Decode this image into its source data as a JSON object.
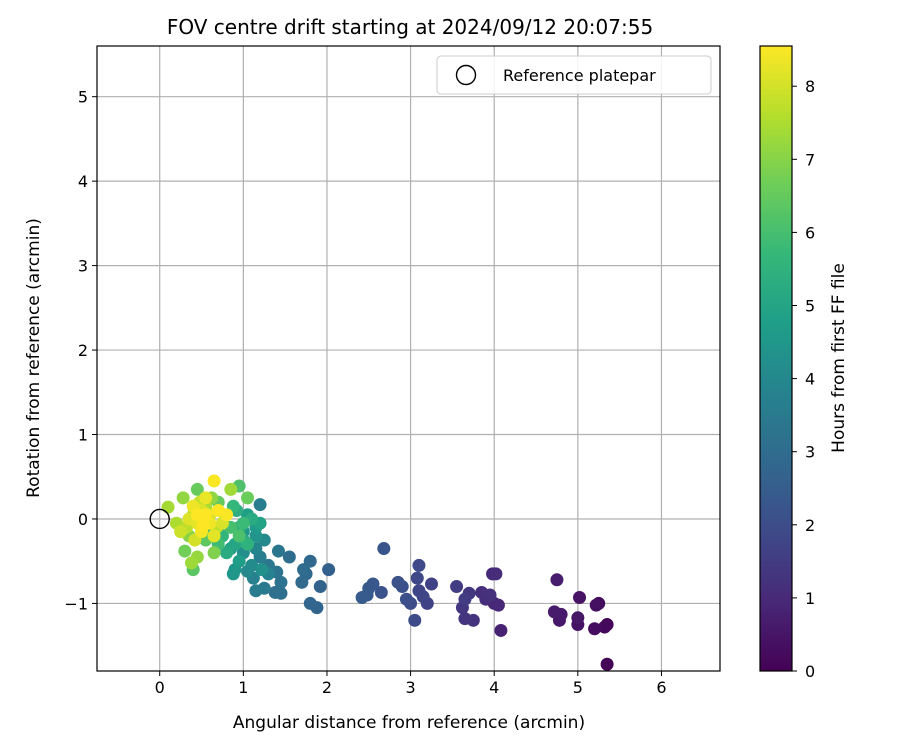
{
  "chart_data": {
    "type": "scatter",
    "title": "FOV centre drift starting at 2024/09/12 20:07:55",
    "xlabel": "Angular distance from reference (arcmin)",
    "ylabel": "Rotation from reference (arcmin)",
    "xlim": [
      -0.75,
      6.7
    ],
    "ylim": [
      -1.8,
      5.6
    ],
    "xticks": [
      0,
      1,
      2,
      3,
      4,
      5,
      6
    ],
    "yticks": [
      -1,
      0,
      1,
      2,
      3,
      4,
      5
    ],
    "xtick_labels": [
      "0",
      "1",
      "2",
      "3",
      "4",
      "5",
      "6"
    ],
    "ytick_labels": [
      "−1",
      "0",
      "1",
      "2",
      "3",
      "4",
      "5"
    ],
    "grid": true,
    "colormap": "viridis",
    "colorbar": {
      "label": "Hours from first FF file",
      "range": [
        0,
        8.55
      ],
      "ticks": [
        0,
        1,
        2,
        3,
        4,
        5,
        6,
        7,
        8
      ],
      "tick_labels": [
        "0",
        "1",
        "2",
        "3",
        "4",
        "5",
        "6",
        "7",
        "8"
      ]
    },
    "legend": {
      "position": "top-right",
      "entries": [
        "Reference platepar"
      ]
    },
    "reference": {
      "x": 0,
      "y": 0,
      "marker": "open-circle"
    },
    "points": [
      {
        "x": 5.35,
        "y": -1.72,
        "t": 0.05
      },
      {
        "x": 5.35,
        "y": -1.25,
        "t": 0.15
      },
      {
        "x": 5.32,
        "y": -1.28,
        "t": 0.2
      },
      {
        "x": 5.25,
        "y": -1.0,
        "t": 0.25
      },
      {
        "x": 5.2,
        "y": -1.3,
        "t": 0.3
      },
      {
        "x": 5.22,
        "y": -1.02,
        "t": 0.35
      },
      {
        "x": 5.0,
        "y": -1.25,
        "t": 0.4
      },
      {
        "x": 5.02,
        "y": -0.93,
        "t": 0.45
      },
      {
        "x": 5.0,
        "y": -1.17,
        "t": 0.5
      },
      {
        "x": 4.78,
        "y": -1.2,
        "t": 0.55
      },
      {
        "x": 4.8,
        "y": -1.13,
        "t": 0.6
      },
      {
        "x": 4.72,
        "y": -1.1,
        "t": 0.65
      },
      {
        "x": 4.75,
        "y": -0.72,
        "t": 0.7
      },
      {
        "x": 4.08,
        "y": -1.32,
        "t": 0.8
      },
      {
        "x": 4.0,
        "y": -1.0,
        "t": 0.9
      },
      {
        "x": 4.05,
        "y": -1.02,
        "t": 0.95
      },
      {
        "x": 3.98,
        "y": -0.65,
        "t": 1.0
      },
      {
        "x": 4.02,
        "y": -0.65,
        "t": 1.05
      },
      {
        "x": 3.9,
        "y": -0.95,
        "t": 1.1
      },
      {
        "x": 3.85,
        "y": -0.87,
        "t": 1.15
      },
      {
        "x": 3.95,
        "y": -0.9,
        "t": 1.2
      },
      {
        "x": 3.75,
        "y": -1.2,
        "t": 1.25
      },
      {
        "x": 3.65,
        "y": -1.18,
        "t": 1.3
      },
      {
        "x": 3.62,
        "y": -1.05,
        "t": 1.35
      },
      {
        "x": 3.7,
        "y": -0.88,
        "t": 1.4
      },
      {
        "x": 3.65,
        "y": -0.95,
        "t": 1.5
      },
      {
        "x": 3.55,
        "y": -0.8,
        "t": 1.55
      },
      {
        "x": 3.25,
        "y": -0.77,
        "t": 1.65
      },
      {
        "x": 3.2,
        "y": -1.0,
        "t": 1.7
      },
      {
        "x": 3.15,
        "y": -0.92,
        "t": 1.75
      },
      {
        "x": 3.1,
        "y": -0.85,
        "t": 1.8
      },
      {
        "x": 3.08,
        "y": -0.7,
        "t": 1.85
      },
      {
        "x": 3.1,
        "y": -0.55,
        "t": 1.9
      },
      {
        "x": 3.05,
        "y": -1.2,
        "t": 1.95
      },
      {
        "x": 3.0,
        "y": -1.0,
        "t": 2.0
      },
      {
        "x": 2.95,
        "y": -0.95,
        "t": 2.05
      },
      {
        "x": 2.9,
        "y": -0.8,
        "t": 2.1
      },
      {
        "x": 2.85,
        "y": -0.75,
        "t": 2.15
      },
      {
        "x": 2.65,
        "y": -0.87,
        "t": 2.2
      },
      {
        "x": 2.68,
        "y": -0.35,
        "t": 2.25
      },
      {
        "x": 2.55,
        "y": -0.77,
        "t": 2.3
      },
      {
        "x": 2.5,
        "y": -0.82,
        "t": 2.35
      },
      {
        "x": 2.48,
        "y": -0.9,
        "t": 2.4
      },
      {
        "x": 2.42,
        "y": -0.93,
        "t": 2.45
      },
      {
        "x": 2.02,
        "y": -0.6,
        "t": 2.6
      },
      {
        "x": 1.92,
        "y": -0.8,
        "t": 2.7
      },
      {
        "x": 1.88,
        "y": -1.05,
        "t": 2.75
      },
      {
        "x": 1.8,
        "y": -1.0,
        "t": 2.8
      },
      {
        "x": 1.8,
        "y": -0.5,
        "t": 2.85
      },
      {
        "x": 1.75,
        "y": -0.65,
        "t": 2.9
      },
      {
        "x": 1.7,
        "y": -0.75,
        "t": 2.95
      },
      {
        "x": 1.72,
        "y": -0.6,
        "t": 3.0
      },
      {
        "x": 1.55,
        "y": -0.45,
        "t": 3.05
      },
      {
        "x": 1.45,
        "y": -0.88,
        "t": 3.1
      },
      {
        "x": 1.38,
        "y": -0.87,
        "t": 3.15
      },
      {
        "x": 1.45,
        "y": -0.75,
        "t": 3.2
      },
      {
        "x": 1.4,
        "y": -0.63,
        "t": 3.3
      },
      {
        "x": 1.42,
        "y": -0.38,
        "t": 3.35
      },
      {
        "x": 1.3,
        "y": -0.55,
        "t": 3.4
      },
      {
        "x": 1.25,
        "y": -0.82,
        "t": 3.5
      },
      {
        "x": 1.15,
        "y": -0.85,
        "t": 3.55
      },
      {
        "x": 1.2,
        "y": -0.45,
        "t": 3.6
      },
      {
        "x": 1.2,
        "y": 0.17,
        "t": 3.65
      },
      {
        "x": 1.12,
        "y": -0.7,
        "t": 3.75
      },
      {
        "x": 1.3,
        "y": -0.65,
        "t": 3.8
      },
      {
        "x": 1.15,
        "y": -0.35,
        "t": 3.9
      },
      {
        "x": 1.05,
        "y": -0.62,
        "t": 4.0
      },
      {
        "x": 1.25,
        "y": -0.25,
        "t": 4.05
      },
      {
        "x": 1.1,
        "y": -0.55,
        "t": 4.1
      },
      {
        "x": 1.0,
        "y": -0.4,
        "t": 4.2
      },
      {
        "x": 1.22,
        "y": -0.6,
        "t": 4.3
      },
      {
        "x": 1.15,
        "y": -0.2,
        "t": 4.4
      },
      {
        "x": 0.9,
        "y": -0.6,
        "t": 4.45
      },
      {
        "x": 0.88,
        "y": -0.65,
        "t": 4.5
      },
      {
        "x": 1.0,
        "y": -0.15,
        "t": 4.55
      },
      {
        "x": 1.15,
        "y": -0.1,
        "t": 4.6
      },
      {
        "x": 0.95,
        "y": -0.5,
        "t": 4.7
      },
      {
        "x": 1.05,
        "y": 0.05,
        "t": 4.8
      },
      {
        "x": 0.85,
        "y": -0.35,
        "t": 4.85
      },
      {
        "x": 1.2,
        "y": -0.05,
        "t": 4.9
      },
      {
        "x": 0.9,
        "y": -0.3,
        "t": 5.0
      },
      {
        "x": 1.0,
        "y": -0.25,
        "t": 5.1
      },
      {
        "x": 0.8,
        "y": -0.4,
        "t": 5.2
      },
      {
        "x": 1.1,
        "y": 0.0,
        "t": 5.25
      },
      {
        "x": 0.92,
        "y": 0.1,
        "t": 5.3
      },
      {
        "x": 0.95,
        "y": -0.1,
        "t": 5.4
      },
      {
        "x": 1.05,
        "y": -0.3,
        "t": 5.5
      },
      {
        "x": 0.75,
        "y": -0.2,
        "t": 5.6
      },
      {
        "x": 0.88,
        "y": 0.15,
        "t": 5.7
      },
      {
        "x": 1.0,
        "y": -0.05,
        "t": 5.8
      },
      {
        "x": 0.7,
        "y": -0.3,
        "t": 5.9
      },
      {
        "x": 0.85,
        "y": -0.1,
        "t": 6.0
      },
      {
        "x": 0.95,
        "y": -0.2,
        "t": 6.1
      },
      {
        "x": 0.95,
        "y": 0.39,
        "t": 6.15
      },
      {
        "x": 0.6,
        "y": -0.15,
        "t": 6.2
      },
      {
        "x": 0.78,
        "y": 0.05,
        "t": 6.3
      },
      {
        "x": 0.4,
        "y": -0.6,
        "t": 6.35
      },
      {
        "x": 0.55,
        "y": -0.25,
        "t": 6.4
      },
      {
        "x": 0.7,
        "y": 0.2,
        "t": 6.5
      },
      {
        "x": 0.45,
        "y": 0.35,
        "t": 6.55
      },
      {
        "x": 1.05,
        "y": 0.25,
        "t": 6.6
      },
      {
        "x": 0.3,
        "y": -0.38,
        "t": 6.7
      },
      {
        "x": 0.5,
        "y": -0.05,
        "t": 6.8
      },
      {
        "x": 0.65,
        "y": -0.4,
        "t": 6.9
      },
      {
        "x": 0.35,
        "y": -0.2,
        "t": 7.0
      },
      {
        "x": 0.62,
        "y": 0.25,
        "t": 7.1
      },
      {
        "x": 0.28,
        "y": 0.25,
        "t": 7.15
      },
      {
        "x": 0.45,
        "y": -0.45,
        "t": 7.2
      },
      {
        "x": 0.38,
        "y": -0.52,
        "t": 7.3
      },
      {
        "x": 0.85,
        "y": 0.35,
        "t": 7.35
      },
      {
        "x": 0.1,
        "y": 0.14,
        "t": 7.4
      },
      {
        "x": 0.55,
        "y": 0.15,
        "t": 7.45
      },
      {
        "x": 0.2,
        "y": -0.05,
        "t": 7.5
      },
      {
        "x": 0.4,
        "y": 0.05,
        "t": 7.6
      },
      {
        "x": 0.32,
        "y": -0.1,
        "t": 7.7
      },
      {
        "x": 0.68,
        "y": -0.1,
        "t": 7.75
      },
      {
        "x": 0.48,
        "y": 0.2,
        "t": 7.8
      },
      {
        "x": 0.25,
        "y": -0.15,
        "t": 7.9
      },
      {
        "x": 0.6,
        "y": 0.05,
        "t": 7.95
      },
      {
        "x": 0.42,
        "y": -0.25,
        "t": 8.0
      },
      {
        "x": 0.75,
        "y": -0.05,
        "t": 8.05
      },
      {
        "x": 0.5,
        "y": 0.1,
        "t": 8.1
      },
      {
        "x": 0.35,
        "y": 0.0,
        "t": 8.15
      },
      {
        "x": 0.65,
        "y": -0.2,
        "t": 8.2
      },
      {
        "x": 0.45,
        "y": -0.05,
        "t": 8.25
      },
      {
        "x": 0.55,
        "y": 0.25,
        "t": 8.3
      },
      {
        "x": 0.4,
        "y": 0.15,
        "t": 8.35
      },
      {
        "x": 0.6,
        "y": -0.05,
        "t": 8.4
      },
      {
        "x": 0.5,
        "y": -0.15,
        "t": 8.45
      },
      {
        "x": 0.65,
        "y": 0.45,
        "t": 8.5
      },
      {
        "x": 0.8,
        "y": 0.05,
        "t": 8.5
      },
      {
        "x": 0.55,
        "y": 0.05,
        "t": 8.55
      },
      {
        "x": 0.45,
        "y": 0.05,
        "t": 8.55
      },
      {
        "x": 0.7,
        "y": 0.1,
        "t": 8.55
      },
      {
        "x": 0.52,
        "y": -0.08,
        "t": 8.55
      }
    ]
  }
}
